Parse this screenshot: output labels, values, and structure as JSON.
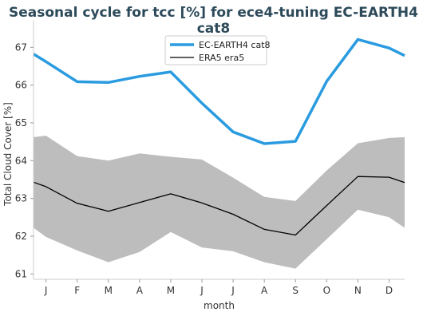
{
  "chart_data": {
    "type": "line",
    "title": "Seasonal cycle for tcc [%] for ece4-tuning EC-EARTH4 cat8",
    "xlabel": "month",
    "ylabel": "Total Cloud Cover [%]",
    "categories": [
      "J",
      "F",
      "M",
      "A",
      "M",
      "J",
      "J",
      "A",
      "S",
      "O",
      "N",
      "D"
    ],
    "x_tick_labels": [
      "J",
      "F",
      "M",
      "A",
      "M",
      "J",
      "J",
      "A",
      "S",
      "O",
      "N",
      "D"
    ],
    "y_ticks": [
      61,
      62,
      63,
      64,
      65,
      66,
      67
    ],
    "ylim": [
      60.9,
      67.45
    ],
    "x_range_months": [
      0.6,
      12.5
    ],
    "grid": false,
    "legend_position": "top-center",
    "band": {
      "color": "#bdbdbd",
      "points": [
        {
          "x": 0.6,
          "lower": 62.22,
          "upper": 64.62
        },
        {
          "x": 1.0,
          "lower": 61.98,
          "upper": 64.66
        },
        {
          "x": 2.0,
          "lower": 61.62,
          "upper": 64.12
        },
        {
          "x": 3.0,
          "lower": 61.31,
          "upper": 64.0
        },
        {
          "x": 4.0,
          "lower": 61.58,
          "upper": 64.19
        },
        {
          "x": 5.0,
          "lower": 62.11,
          "upper": 64.1
        },
        {
          "x": 6.0,
          "lower": 61.7,
          "upper": 64.03
        },
        {
          "x": 7.0,
          "lower": 61.6,
          "upper": 63.55
        },
        {
          "x": 8.0,
          "lower": 61.31,
          "upper": 63.04
        },
        {
          "x": 9.0,
          "lower": 61.14,
          "upper": 62.93
        },
        {
          "x": 10.0,
          "lower": 61.92,
          "upper": 63.74
        },
        {
          "x": 11.0,
          "lower": 62.7,
          "upper": 64.46
        },
        {
          "x": 12.0,
          "lower": 62.5,
          "upper": 64.6
        },
        {
          "x": 12.5,
          "lower": 62.22,
          "upper": 64.62
        }
      ]
    },
    "series": [
      {
        "name": "EC-EARTH4 cat8",
        "color": "#2b9be0",
        "x": [
          0.6,
          1,
          2,
          3,
          4,
          5,
          6,
          7,
          8,
          9,
          10,
          11,
          12,
          12.5
        ],
        "values": [
          66.82,
          66.62,
          66.09,
          66.07,
          66.23,
          66.35,
          65.52,
          64.76,
          64.45,
          64.51,
          66.1,
          67.21,
          66.98,
          66.78
        ]
      },
      {
        "name": "ERA5 era5",
        "color": "#000000",
        "x": [
          0.6,
          1,
          2,
          3,
          4,
          5,
          6,
          7,
          8,
          9,
          10,
          11,
          12,
          12.5
        ],
        "values": [
          63.43,
          63.31,
          62.87,
          62.66,
          62.89,
          63.12,
          62.88,
          62.58,
          62.18,
          62.03,
          62.81,
          63.58,
          63.56,
          63.42
        ]
      }
    ]
  }
}
